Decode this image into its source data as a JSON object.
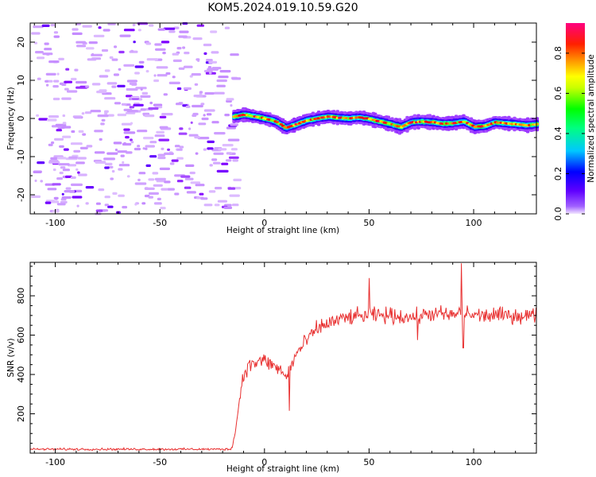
{
  "figure": {
    "title": "KOM5.2024.019.10.59.G20"
  },
  "chart_data": [
    {
      "type": "heatmap",
      "xlabel": "Height of straight line (km)",
      "ylabel": "Frequency (Hz)",
      "colorbar_label": "Normalized spectral amplitude",
      "xlim": [
        -112,
        130
      ],
      "ylim": [
        -25,
        25
      ],
      "xticks": [
        -100,
        -50,
        0,
        50,
        100
      ],
      "yticks": [
        -20,
        -10,
        0,
        10,
        20
      ],
      "colorbar_ticks": [
        0.0,
        0.2,
        0.4,
        0.6,
        0.8
      ],
      "colorbar_range": [
        0,
        0.95
      ],
      "colormap": [
        "#f2e6ff",
        "#8000ff",
        "#0000ff",
        "#00ffff",
        "#00ff00",
        "#ffff00",
        "#ff8000",
        "#ff0000",
        "#ff0080"
      ],
      "signal_onset_km": -15,
      "ridge": {
        "x": [
          -15,
          -10,
          -5,
          0,
          5,
          10,
          15,
          20,
          25,
          30,
          35,
          40,
          45,
          50,
          55,
          60,
          65,
          70,
          75,
          80,
          85,
          90,
          95,
          100,
          105,
          110,
          115,
          120,
          125,
          130
        ],
        "freq": [
          0.5,
          1.0,
          0.5,
          0.0,
          -0.8,
          -2.5,
          -1.5,
          -0.5,
          0.0,
          0.5,
          0.2,
          0.0,
          0.3,
          -0.2,
          -0.8,
          -1.5,
          -2.2,
          -1.0,
          -0.8,
          -1.0,
          -1.4,
          -1.2,
          -0.8,
          -2.2,
          -2.0,
          -1.0,
          -1.3,
          -1.5,
          -1.8,
          -1.5
        ]
      },
      "grid": false
    },
    {
      "type": "line",
      "xlabel": "Height of straight line (km)",
      "ylabel": "SNR (v/v)",
      "xlim": [
        -112,
        130
      ],
      "ylim": [
        0,
        970
      ],
      "xticks": [
        -100,
        -50,
        0,
        50,
        100
      ],
      "yticks": [
        200,
        400,
        600,
        800
      ],
      "color": "#e83030",
      "profile": {
        "x": [
          -112,
          -16,
          -14,
          -11,
          -9,
          -5,
          0,
          5,
          8,
          10,
          15,
          20,
          25,
          30,
          40,
          50,
          60,
          70,
          80,
          90,
          95,
          100,
          110,
          120,
          130
        ],
        "y": [
          20,
          20,
          100,
          350,
          430,
          460,
          470,
          440,
          420,
          380,
          500,
          570,
          630,
          660,
          690,
          700,
          700,
          690,
          710,
          700,
          720,
          700,
          700,
          700,
          700
        ]
      },
      "noise_amplitude": 60,
      "notable_points": [
        {
          "x": 94,
          "y": 965
        },
        {
          "x": 50,
          "y": 890
        },
        {
          "x": 12,
          "y": 215
        },
        {
          "x": 73,
          "y": 575
        },
        {
          "x": 95,
          "y": 535
        }
      ],
      "grid": false
    }
  ]
}
